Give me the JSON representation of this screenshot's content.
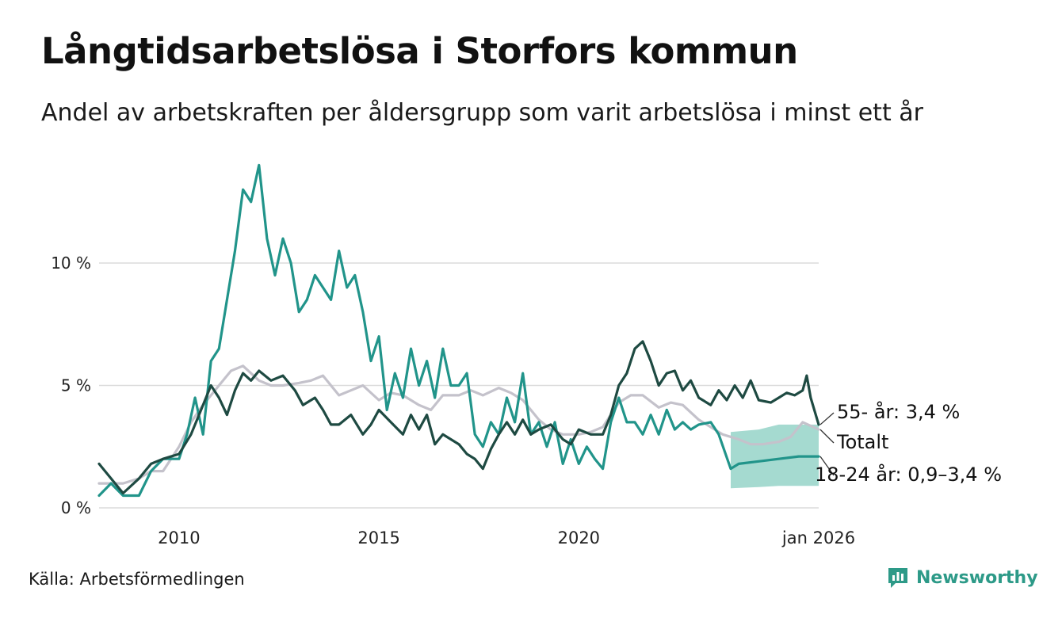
{
  "title": "Långtidsarbetslösa i Storfors kommun",
  "subtitle": "Andel av arbetskraften per åldersgrupp som varit arbetslösa i minst ett år",
  "source": "Källa: Arbetsförmedlingen",
  "brand": {
    "name": "Newsworthy",
    "icon": "newsworthy-logo-icon",
    "color": "#2d9a88"
  },
  "chart_data": {
    "type": "line",
    "title": "Långtidsarbetslösa i Storfors kommun",
    "ylabel": "",
    "ylim": [
      0,
      14.5
    ],
    "xlim": [
      2008.0,
      2026.0
    ],
    "yticks": [
      0,
      5,
      10
    ],
    "ytick_labels": [
      "0 %",
      "5 %",
      "10 %"
    ],
    "xticks": [
      2010,
      2015,
      2020,
      2026.0
    ],
    "xtick_labels": [
      "2010",
      "2015",
      "2020",
      "jan 2026"
    ],
    "grid": true,
    "series": [
      {
        "name": "Totalt",
        "color": "#c4c2cb",
        "label": "Totalt",
        "points": [
          [
            2008.0,
            1.0
          ],
          [
            2008.3,
            1.0
          ],
          [
            2008.6,
            1.0
          ],
          [
            2009.0,
            1.2
          ],
          [
            2009.3,
            1.5
          ],
          [
            2009.6,
            1.5
          ],
          [
            2010.0,
            2.5
          ],
          [
            2010.3,
            3.5
          ],
          [
            2010.6,
            4.2
          ],
          [
            2011.0,
            5.0
          ],
          [
            2011.3,
            5.6
          ],
          [
            2011.6,
            5.8
          ],
          [
            2012.0,
            5.2
          ],
          [
            2012.3,
            5.0
          ],
          [
            2012.6,
            5.0
          ],
          [
            2013.0,
            5.1
          ],
          [
            2013.3,
            5.2
          ],
          [
            2013.6,
            5.4
          ],
          [
            2014.0,
            4.6
          ],
          [
            2014.3,
            4.8
          ],
          [
            2014.6,
            5.0
          ],
          [
            2015.0,
            4.4
          ],
          [
            2015.3,
            4.7
          ],
          [
            2015.6,
            4.6
          ],
          [
            2016.0,
            4.2
          ],
          [
            2016.3,
            4.0
          ],
          [
            2016.6,
            4.6
          ],
          [
            2017.0,
            4.6
          ],
          [
            2017.3,
            4.8
          ],
          [
            2017.6,
            4.6
          ],
          [
            2018.0,
            4.9
          ],
          [
            2018.3,
            4.7
          ],
          [
            2018.6,
            4.4
          ],
          [
            2019.0,
            3.6
          ],
          [
            2019.3,
            3.2
          ],
          [
            2019.6,
            3.0
          ],
          [
            2020.0,
            3.0
          ],
          [
            2020.3,
            3.1
          ],
          [
            2020.6,
            3.3
          ],
          [
            2021.0,
            4.3
          ],
          [
            2021.3,
            4.6
          ],
          [
            2021.6,
            4.6
          ],
          [
            2022.0,
            4.1
          ],
          [
            2022.3,
            4.3
          ],
          [
            2022.6,
            4.2
          ],
          [
            2023.0,
            3.6
          ],
          [
            2023.3,
            3.3
          ],
          [
            2023.6,
            3.0
          ],
          [
            2024.0,
            2.8
          ],
          [
            2024.3,
            2.6
          ],
          [
            2024.6,
            2.6
          ],
          [
            2025.0,
            2.7
          ],
          [
            2025.3,
            2.9
          ],
          [
            2025.6,
            3.5
          ],
          [
            2026.0,
            3.2
          ]
        ]
      },
      {
        "name": "18-24 år",
        "color": "#21948a",
        "label": "18-24 år: 0,9–3,4 %",
        "points": [
          [
            2008.0,
            0.5
          ],
          [
            2008.3,
            1.0
          ],
          [
            2008.6,
            0.5
          ],
          [
            2009.0,
            0.5
          ],
          [
            2009.3,
            1.5
          ],
          [
            2009.6,
            2.0
          ],
          [
            2010.0,
            2.0
          ],
          [
            2010.2,
            3.0
          ],
          [
            2010.4,
            4.5
          ],
          [
            2010.6,
            3.0
          ],
          [
            2010.8,
            6.0
          ],
          [
            2011.0,
            6.5
          ],
          [
            2011.2,
            8.5
          ],
          [
            2011.4,
            10.5
          ],
          [
            2011.6,
            13.0
          ],
          [
            2011.8,
            12.5
          ],
          [
            2012.0,
            14.0
          ],
          [
            2012.2,
            11.0
          ],
          [
            2012.4,
            9.5
          ],
          [
            2012.6,
            11.0
          ],
          [
            2012.8,
            10.0
          ],
          [
            2013.0,
            8.0
          ],
          [
            2013.2,
            8.5
          ],
          [
            2013.4,
            9.5
          ],
          [
            2013.6,
            9.0
          ],
          [
            2013.8,
            8.5
          ],
          [
            2014.0,
            10.5
          ],
          [
            2014.2,
            9.0
          ],
          [
            2014.4,
            9.5
          ],
          [
            2014.6,
            8.0
          ],
          [
            2014.8,
            6.0
          ],
          [
            2015.0,
            7.0
          ],
          [
            2015.2,
            4.0
          ],
          [
            2015.4,
            5.5
          ],
          [
            2015.6,
            4.5
          ],
          [
            2015.8,
            6.5
          ],
          [
            2016.0,
            5.0
          ],
          [
            2016.2,
            6.0
          ],
          [
            2016.4,
            4.5
          ],
          [
            2016.6,
            6.5
          ],
          [
            2016.8,
            5.0
          ],
          [
            2017.0,
            5.0
          ],
          [
            2017.2,
            5.5
          ],
          [
            2017.4,
            3.0
          ],
          [
            2017.6,
            2.5
          ],
          [
            2017.8,
            3.5
          ],
          [
            2018.0,
            3.0
          ],
          [
            2018.2,
            4.5
          ],
          [
            2018.4,
            3.5
          ],
          [
            2018.6,
            5.5
          ],
          [
            2018.8,
            3.0
          ],
          [
            2019.0,
            3.5
          ],
          [
            2019.2,
            2.5
          ],
          [
            2019.4,
            3.5
          ],
          [
            2019.6,
            1.8
          ],
          [
            2019.8,
            2.8
          ],
          [
            2020.0,
            1.8
          ],
          [
            2020.2,
            2.5
          ],
          [
            2020.4,
            2.0
          ],
          [
            2020.6,
            1.6
          ],
          [
            2020.8,
            3.5
          ],
          [
            2021.0,
            4.5
          ],
          [
            2021.2,
            3.5
          ],
          [
            2021.4,
            3.5
          ],
          [
            2021.6,
            3.0
          ],
          [
            2021.8,
            3.8
          ],
          [
            2022.0,
            3.0
          ],
          [
            2022.2,
            4.0
          ],
          [
            2022.4,
            3.2
          ],
          [
            2022.6,
            3.5
          ],
          [
            2022.8,
            3.2
          ],
          [
            2023.0,
            3.4
          ],
          [
            2023.3,
            3.5
          ],
          [
            2023.5,
            3.0
          ],
          [
            2023.8,
            1.6
          ],
          [
            2024.0,
            1.8
          ],
          [
            2024.5,
            1.9
          ],
          [
            2025.0,
            2.0
          ],
          [
            2025.5,
            2.1
          ],
          [
            2026.0,
            2.1
          ]
        ]
      },
      {
        "name": "55- år",
        "color": "#1e4a42",
        "label": "55- år: 3,4 %",
        "points": [
          [
            2008.0,
            1.8
          ],
          [
            2008.3,
            1.2
          ],
          [
            2008.6,
            0.6
          ],
          [
            2009.0,
            1.2
          ],
          [
            2009.3,
            1.8
          ],
          [
            2009.6,
            2.0
          ],
          [
            2010.0,
            2.2
          ],
          [
            2010.3,
            3.0
          ],
          [
            2010.6,
            4.2
          ],
          [
            2010.8,
            5.0
          ],
          [
            2011.0,
            4.5
          ],
          [
            2011.2,
            3.8
          ],
          [
            2011.4,
            4.8
          ],
          [
            2011.6,
            5.5
          ],
          [
            2011.8,
            5.2
          ],
          [
            2012.0,
            5.6
          ],
          [
            2012.3,
            5.2
          ],
          [
            2012.6,
            5.4
          ],
          [
            2012.9,
            4.8
          ],
          [
            2013.1,
            4.2
          ],
          [
            2013.4,
            4.5
          ],
          [
            2013.6,
            4.0
          ],
          [
            2013.8,
            3.4
          ],
          [
            2014.0,
            3.4
          ],
          [
            2014.3,
            3.8
          ],
          [
            2014.6,
            3.0
          ],
          [
            2014.8,
            3.4
          ],
          [
            2015.0,
            4.0
          ],
          [
            2015.3,
            3.5
          ],
          [
            2015.6,
            3.0
          ],
          [
            2015.8,
            3.8
          ],
          [
            2016.0,
            3.2
          ],
          [
            2016.2,
            3.8
          ],
          [
            2016.4,
            2.6
          ],
          [
            2016.6,
            3.0
          ],
          [
            2016.8,
            2.8
          ],
          [
            2017.0,
            2.6
          ],
          [
            2017.2,
            2.2
          ],
          [
            2017.4,
            2.0
          ],
          [
            2017.6,
            1.6
          ],
          [
            2017.8,
            2.4
          ],
          [
            2018.0,
            3.0
          ],
          [
            2018.2,
            3.5
          ],
          [
            2018.4,
            3.0
          ],
          [
            2018.6,
            3.6
          ],
          [
            2018.8,
            3.0
          ],
          [
            2019.0,
            3.2
          ],
          [
            2019.3,
            3.4
          ],
          [
            2019.6,
            2.8
          ],
          [
            2019.8,
            2.6
          ],
          [
            2020.0,
            3.2
          ],
          [
            2020.3,
            3.0
          ],
          [
            2020.6,
            3.0
          ],
          [
            2020.8,
            3.8
          ],
          [
            2021.0,
            5.0
          ],
          [
            2021.2,
            5.5
          ],
          [
            2021.4,
            6.5
          ],
          [
            2021.6,
            6.8
          ],
          [
            2021.8,
            6.0
          ],
          [
            2022.0,
            5.0
          ],
          [
            2022.2,
            5.5
          ],
          [
            2022.4,
            5.6
          ],
          [
            2022.6,
            4.8
          ],
          [
            2022.8,
            5.2
          ],
          [
            2023.0,
            4.5
          ],
          [
            2023.3,
            4.2
          ],
          [
            2023.5,
            4.8
          ],
          [
            2023.7,
            4.4
          ],
          [
            2023.9,
            5.0
          ],
          [
            2024.1,
            4.5
          ],
          [
            2024.3,
            5.2
          ],
          [
            2024.5,
            4.4
          ],
          [
            2024.8,
            4.3
          ],
          [
            2025.0,
            4.5
          ],
          [
            2025.2,
            4.7
          ],
          [
            2025.4,
            4.6
          ],
          [
            2025.6,
            4.8
          ],
          [
            2025.7,
            5.4
          ],
          [
            2025.8,
            4.5
          ],
          [
            2026.0,
            3.4
          ]
        ]
      }
    ],
    "band": {
      "name": "18-24 år intervall",
      "color": "#8fd1c4",
      "lower": [
        [
          2023.8,
          0.8
        ],
        [
          2024.5,
          0.85
        ],
        [
          2025.0,
          0.9
        ],
        [
          2025.5,
          0.9
        ],
        [
          2026.0,
          0.9
        ]
      ],
      "upper": [
        [
          2023.8,
          3.1
        ],
        [
          2024.5,
          3.2
        ],
        [
          2025.0,
          3.4
        ],
        [
          2025.5,
          3.4
        ],
        [
          2026.0,
          3.4
        ]
      ]
    }
  }
}
